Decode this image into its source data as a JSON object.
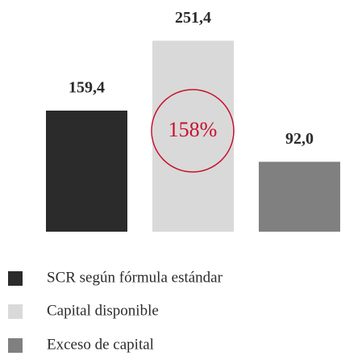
{
  "chart_data": {
    "type": "bar",
    "categories": [
      "SCR según fórmula estándar",
      "Capital disponible",
      "Exceso de capital"
    ],
    "values": [
      159.4,
      251.4,
      92.0
    ],
    "value_labels": [
      "159,4",
      "251,4",
      "92,0"
    ],
    "colors": [
      "#2b2b2b",
      "#d9d9d9",
      "#808080"
    ],
    "annotation": "158%",
    "annotation_color": "#c8102e",
    "legend": true
  }
}
